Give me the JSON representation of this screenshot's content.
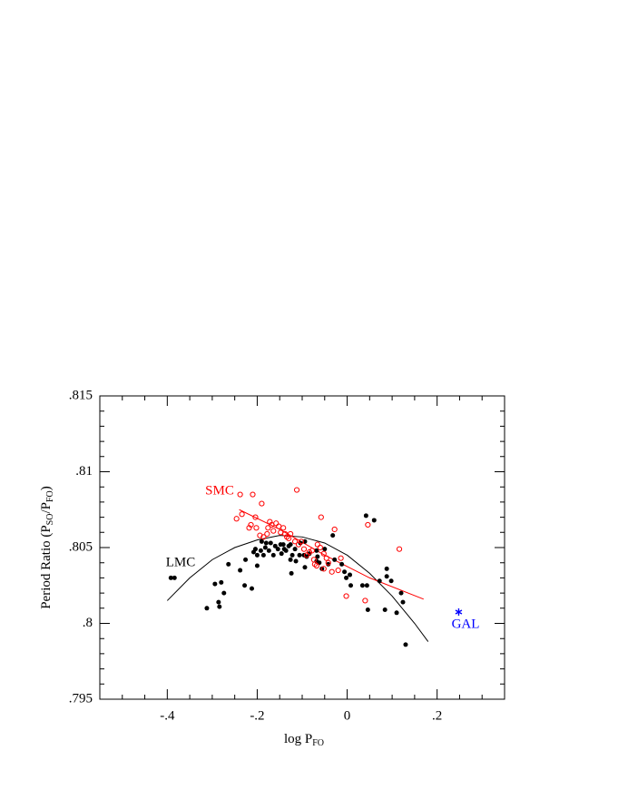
{
  "chart_data": {
    "type": "scatter",
    "xlabel": [
      "log P",
      "FO"
    ],
    "ylabel": [
      "Period Ratio (P",
      "SO",
      "/P",
      "FO",
      ")"
    ],
    "xlim": [
      -0.55,
      0.35
    ],
    "ylim": [
      0.795,
      0.815
    ],
    "xticks": [
      {
        "value": -0.4,
        "label": "-.4"
      },
      {
        "value": -0.2,
        "label": "-.2"
      },
      0,
      {
        "value": 0.2,
        "label": ".2"
      }
    ],
    "yticks": [
      {
        "value": 0.795,
        "label": ".795"
      },
      {
        "value": 0.8,
        "label": ".8"
      },
      {
        "value": 0.805,
        "label": ".805"
      },
      {
        "value": 0.81,
        "label": ".81"
      },
      {
        "value": 0.815,
        "label": ".815"
      }
    ],
    "xminorticks": [
      -0.5,
      -0.45,
      -0.35,
      -0.3,
      -0.25,
      -0.15,
      -0.1,
      -0.05,
      0.05,
      0.1,
      0.15,
      0.25,
      0.3
    ],
    "yminorticks": [
      0.796,
      0.797,
      0.798,
      0.799,
      0.801,
      0.802,
      0.803,
      0.804,
      0.806,
      0.807,
      0.808,
      0.809,
      0.811,
      0.812,
      0.813,
      0.814
    ],
    "series": [
      {
        "name": "LMC",
        "color": "#000000",
        "marker": "filled",
        "x": [
          -0.392,
          -0.384,
          -0.312,
          -0.294,
          -0.286,
          -0.284,
          -0.28,
          -0.274,
          -0.264,
          -0.238,
          -0.226,
          -0.228,
          -0.212,
          -0.208,
          -0.204,
          -0.2,
          -0.2,
          -0.192,
          -0.19,
          -0.186,
          -0.182,
          -0.18,
          -0.174,
          -0.17,
          -0.164,
          -0.16,
          -0.154,
          -0.146,
          -0.148,
          -0.142,
          -0.14,
          -0.136,
          -0.13,
          -0.126,
          -0.122,
          -0.124,
          -0.126,
          -0.116,
          -0.114,
          -0.106,
          -0.104,
          -0.096,
          -0.094,
          -0.094,
          -0.09,
          -0.084,
          -0.068,
          -0.066,
          -0.062,
          -0.068,
          -0.056,
          -0.05,
          -0.042,
          -0.032,
          -0.028,
          -0.012,
          -0.006,
          -0.002,
          0.006,
          0.008,
          0.034,
          0.044,
          0.046,
          0.042,
          0.06,
          0.072,
          0.084,
          0.088,
          0.088,
          0.098,
          0.11,
          0.12,
          0.124,
          0.13
        ],
        "values": [
          0.803,
          0.803,
          0.801,
          0.8026,
          0.8014,
          0.8011,
          0.8027,
          0.802,
          0.8039,
          0.8035,
          0.8042,
          0.8025,
          0.8023,
          0.8047,
          0.8049,
          0.8045,
          0.8038,
          0.8048,
          0.8054,
          0.8045,
          0.805,
          0.8053,
          0.8048,
          0.8053,
          0.8045,
          0.8051,
          0.8049,
          0.8046,
          0.8052,
          0.8052,
          0.8049,
          0.8048,
          0.8051,
          0.8052,
          0.8045,
          0.8033,
          0.8042,
          0.8049,
          0.8041,
          0.8045,
          0.8053,
          0.8045,
          0.8054,
          0.8037,
          0.8044,
          0.8046,
          0.8041,
          0.8044,
          0.804,
          0.8048,
          0.8036,
          0.8049,
          0.8039,
          0.8058,
          0.8042,
          0.8039,
          0.8034,
          0.803,
          0.8032,
          0.8025,
          0.8025,
          0.8025,
          0.8009,
          0.8071,
          0.8068,
          0.8028,
          0.8009,
          0.8036,
          0.8031,
          0.8028,
          0.8007,
          0.802,
          0.8014,
          0.7986
        ]
      },
      {
        "name": "SMC",
        "color": "#ff0000",
        "marker": "open",
        "x": [
          -0.238,
          -0.21,
          -0.234,
          -0.246,
          -0.19,
          -0.204,
          -0.214,
          -0.218,
          -0.202,
          -0.194,
          -0.186,
          -0.178,
          -0.176,
          -0.172,
          -0.168,
          -0.164,
          -0.158,
          -0.152,
          -0.148,
          -0.142,
          -0.138,
          -0.134,
          -0.13,
          -0.126,
          -0.112,
          -0.116,
          -0.108,
          -0.102,
          -0.096,
          -0.09,
          -0.084,
          -0.078,
          -0.074,
          -0.072,
          -0.068,
          -0.066,
          -0.06,
          -0.058,
          -0.052,
          -0.052,
          -0.046,
          -0.042,
          -0.034,
          -0.02,
          -0.014,
          -0.002,
          0.04,
          0.046,
          0.116,
          -0.028
        ],
        "values": [
          0.8085,
          0.8085,
          0.8072,
          0.8069,
          0.8079,
          0.807,
          0.8065,
          0.8063,
          0.8063,
          0.8058,
          0.8057,
          0.8059,
          0.8063,
          0.8067,
          0.8065,
          0.8061,
          0.8066,
          0.8064,
          0.806,
          0.8063,
          0.8059,
          0.8057,
          0.8056,
          0.8059,
          0.8088,
          0.8054,
          0.8052,
          0.8054,
          0.8049,
          0.8045,
          0.8047,
          0.8048,
          0.8042,
          0.8039,
          0.8038,
          0.8052,
          0.805,
          0.807,
          0.8046,
          0.8036,
          0.8043,
          0.804,
          0.8034,
          0.8035,
          0.8043,
          0.8018,
          0.8015,
          0.8065,
          0.8049,
          0.8062
        ]
      },
      {
        "name": "GAL",
        "color": "#0000ff",
        "marker": "asterisk",
        "x": [
          0.248
        ],
        "values": [
          0.80075
        ]
      }
    ],
    "fit_lines": [
      {
        "color": "#000000",
        "x": [
          -0.4,
          -0.35,
          -0.3,
          -0.25,
          -0.2,
          -0.15,
          -0.1,
          -0.05,
          0,
          0.05,
          0.1,
          0.15,
          0.18
        ],
        "values": [
          0.8015,
          0.803,
          0.8042,
          0.805,
          0.8055,
          0.8058,
          0.8057,
          0.8053,
          0.8045,
          0.8033,
          0.8018,
          0.8,
          0.7988
        ]
      },
      {
        "color": "#ff0000",
        "x": [
          -0.24,
          -0.15,
          -0.05,
          0.05,
          0.17
        ],
        "values": [
          0.8075,
          0.8062,
          0.8045,
          0.803,
          0.8016
        ]
      }
    ]
  }
}
